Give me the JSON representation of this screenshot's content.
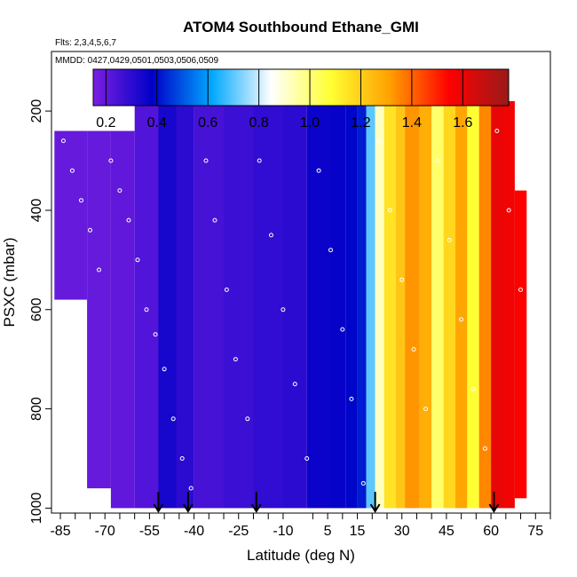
{
  "chart_data": {
    "type": "heatmap",
    "title": "ATOM4 Southbound Ethane_GMI",
    "subtitle_flights": "Flts: 2,3,4,5,6,7",
    "subtitle_dates": "MMDD: 0427,0429,0501,0503,0506,0509",
    "xlabel": "Latitude (deg N)",
    "ylabel": "PSXC (mbar)",
    "xlim": [
      -88,
      80
    ],
    "ylim": [
      1010,
      80
    ],
    "y_reversed": true,
    "x_ticks": [
      -85,
      -70,
      -55,
      -40,
      -25,
      -10,
      5,
      15,
      30,
      45,
      60,
      75
    ],
    "x_minor_ticks": [
      -80,
      -75,
      -65,
      -60,
      -50,
      -45,
      -35,
      -30,
      -20,
      -15,
      0,
      10,
      20,
      25,
      35,
      40,
      50,
      55,
      65,
      70,
      80
    ],
    "y_ticks": [
      200,
      400,
      600,
      800,
      1000
    ],
    "colorbar": {
      "min": 0.15,
      "max": 1.78,
      "ticks": [
        0.2,
        0.4,
        0.6,
        0.8,
        1.0,
        1.2,
        1.4,
        1.6
      ],
      "colors": [
        "#7b1fe0",
        "#0000c8",
        "#00a8ff",
        "#ffffff",
        "#ffff33",
        "#ffa000",
        "#ff0000",
        "#9a1a1a"
      ]
    },
    "columns": [
      {
        "lat_min": -87,
        "lat_max": -76,
        "p_top": 240,
        "p_bot": 580,
        "ratio": 0.19
      },
      {
        "lat_min": -76,
        "lat_max": -68,
        "p_top": 240,
        "p_bot": 960,
        "ratio": 0.19
      },
      {
        "lat_min": -68,
        "lat_max": -60,
        "p_top": 240,
        "p_bot": 1000,
        "ratio": 0.2
      },
      {
        "lat_min": -60,
        "lat_max": -52,
        "p_top": 180,
        "p_bot": 1000,
        "ratio": 0.23
      },
      {
        "lat_min": -52,
        "lat_max": -46,
        "p_top": 180,
        "p_bot": 1000,
        "ratio": 0.34
      },
      {
        "lat_min": -46,
        "lat_max": -40,
        "p_top": 180,
        "p_bot": 1000,
        "ratio": 0.3
      },
      {
        "lat_min": -40,
        "lat_max": -30,
        "p_top": 180,
        "p_bot": 1000,
        "ratio": 0.25
      },
      {
        "lat_min": -30,
        "lat_max": -20,
        "p_top": 180,
        "p_bot": 1000,
        "ratio": 0.27
      },
      {
        "lat_min": -20,
        "lat_max": -10,
        "p_top": 180,
        "p_bot": 1000,
        "ratio": 0.29
      },
      {
        "lat_min": -10,
        "lat_max": -2,
        "p_top": 180,
        "p_bot": 1000,
        "ratio": 0.3
      },
      {
        "lat_min": -2,
        "lat_max": 6,
        "p_top": 180,
        "p_bot": 1000,
        "ratio": 0.36
      },
      {
        "lat_min": 6,
        "lat_max": 11,
        "p_top": 180,
        "p_bot": 1000,
        "ratio": 0.37
      },
      {
        "lat_min": 11,
        "lat_max": 15,
        "p_top": 180,
        "p_bot": 1000,
        "ratio": 0.39
      },
      {
        "lat_min": 15,
        "lat_max": 18,
        "p_top": 180,
        "p_bot": 1000,
        "ratio": 0.42
      },
      {
        "lat_min": 18,
        "lat_max": 21,
        "p_top": 180,
        "p_bot": 1000,
        "ratio": 0.7
      },
      {
        "lat_min": 21,
        "lat_max": 24,
        "p_top": 180,
        "p_bot": 1000,
        "ratio": 0.92
      },
      {
        "lat_min": 24,
        "lat_max": 28,
        "p_top": 180,
        "p_bot": 1000,
        "ratio": 1.15
      },
      {
        "lat_min": 28,
        "lat_max": 31,
        "p_top": 180,
        "p_bot": 1000,
        "ratio": 1.22
      },
      {
        "lat_min": 31,
        "lat_max": 36,
        "p_top": 180,
        "p_bot": 1000,
        "ratio": 1.33
      },
      {
        "lat_min": 36,
        "lat_max": 40,
        "p_top": 180,
        "p_bot": 1000,
        "ratio": 1.28
      },
      {
        "lat_min": 40,
        "lat_max": 44,
        "p_top": 180,
        "p_bot": 1000,
        "ratio": 1.02
      },
      {
        "lat_min": 44,
        "lat_max": 48,
        "p_top": 180,
        "p_bot": 1000,
        "ratio": 1.18
      },
      {
        "lat_min": 48,
        "lat_max": 52,
        "p_top": 180,
        "p_bot": 1000,
        "ratio": 1.3
      },
      {
        "lat_min": 52,
        "lat_max": 56,
        "p_top": 180,
        "p_bot": 1000,
        "ratio": 1.08
      },
      {
        "lat_min": 56,
        "lat_max": 60,
        "p_top": 180,
        "p_bot": 1000,
        "ratio": 1.35
      },
      {
        "lat_min": 60,
        "lat_max": 64,
        "p_top": 180,
        "p_bot": 1000,
        "ratio": 1.6
      },
      {
        "lat_min": 64,
        "lat_max": 68,
        "p_top": 180,
        "p_bot": 1000,
        "ratio": 1.58
      },
      {
        "lat_min": 68,
        "lat_max": 72,
        "p_top": 360,
        "p_bot": 980,
        "ratio": 1.55
      }
    ],
    "arrows_lat": [
      -52,
      -42,
      -19,
      21,
      61
    ],
    "sample_points": [
      [
        -84,
        260
      ],
      [
        -81,
        320
      ],
      [
        -78,
        380
      ],
      [
        -75,
        440
      ],
      [
        -72,
        520
      ],
      [
        -68,
        300
      ],
      [
        -65,
        360
      ],
      [
        -62,
        420
      ],
      [
        -59,
        500
      ],
      [
        -56,
        600
      ],
      [
        -53,
        650
      ],
      [
        -50,
        720
      ],
      [
        -47,
        820
      ],
      [
        -44,
        900
      ],
      [
        -41,
        960
      ],
      [
        -36,
        300
      ],
      [
        -33,
        420
      ],
      [
        -29,
        560
      ],
      [
        -26,
        700
      ],
      [
        -22,
        820
      ],
      [
        -18,
        300
      ],
      [
        -14,
        450
      ],
      [
        -10,
        600
      ],
      [
        -6,
        750
      ],
      [
        -2,
        900
      ],
      [
        2,
        320
      ],
      [
        6,
        480
      ],
      [
        10,
        640
      ],
      [
        13,
        780
      ],
      [
        17,
        950
      ],
      [
        22,
        260
      ],
      [
        26,
        400
      ],
      [
        30,
        540
      ],
      [
        34,
        680
      ],
      [
        38,
        800
      ],
      [
        42,
        300
      ],
      [
        46,
        460
      ],
      [
        50,
        620
      ],
      [
        54,
        760
      ],
      [
        58,
        880
      ],
      [
        62,
        240
      ],
      [
        66,
        400
      ],
      [
        70,
        560
      ]
    ]
  }
}
